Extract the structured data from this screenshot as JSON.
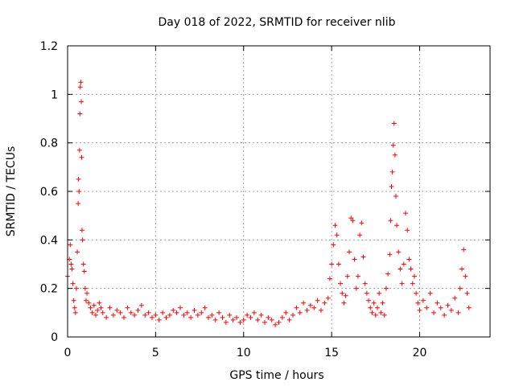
{
  "chart_data": {
    "type": "scatter",
    "title": "Day 018 of 2022, SRMTID for receiver nlib",
    "xlabel": "GPS time / hours",
    "ylabel": "SRMTID / TECUs",
    "xlim": [
      0,
      24
    ],
    "ylim": [
      0,
      1.2
    ],
    "xticks": [
      0,
      5,
      10,
      15,
      20
    ],
    "xtick_labels": [
      "0",
      "5",
      "10",
      "15",
      "20"
    ],
    "yticks": [
      0,
      0.2,
      0.4,
      0.6,
      0.8,
      1.0,
      1.2
    ],
    "ytick_labels": [
      "0",
      "0.2",
      "0.4",
      "0.6",
      "0.8",
      "1",
      "1.2"
    ],
    "grid": true,
    "marker": "plus",
    "color": "#ff0000",
    "series": [
      {
        "name": "SRMTID",
        "x": [
          0.0,
          0.1,
          0.15,
          0.2,
          0.25,
          0.3,
          0.35,
          0.4,
          0.45,
          0.5,
          0.55,
          0.6,
          0.62,
          0.65,
          0.68,
          0.7,
          0.72,
          0.75,
          0.78,
          0.8,
          0.82,
          0.85,
          0.9,
          0.95,
          1.0,
          1.05,
          1.1,
          1.2,
          1.3,
          1.4,
          1.5,
          1.6,
          1.7,
          1.8,
          1.9,
          2.0,
          2.2,
          2.4,
          2.6,
          2.8,
          3.0,
          3.2,
          3.4,
          3.6,
          3.8,
          4.0,
          4.2,
          4.4,
          4.6,
          4.8,
          5.0,
          5.2,
          5.4,
          5.6,
          5.8,
          6.0,
          6.2,
          6.4,
          6.6,
          6.8,
          7.0,
          7.2,
          7.4,
          7.6,
          7.8,
          8.0,
          8.2,
          8.4,
          8.6,
          8.8,
          9.0,
          9.2,
          9.4,
          9.6,
          9.8,
          10.0,
          10.2,
          10.4,
          10.6,
          10.8,
          11.0,
          11.2,
          11.4,
          11.6,
          11.8,
          12.0,
          12.2,
          12.4,
          12.6,
          12.8,
          13.0,
          13.2,
          13.4,
          13.6,
          13.8,
          14.0,
          14.2,
          14.4,
          14.6,
          14.8,
          14.9,
          15.0,
          15.1,
          15.2,
          15.3,
          15.4,
          15.5,
          15.6,
          15.7,
          15.8,
          15.9,
          16.0,
          16.1,
          16.2,
          16.3,
          16.4,
          16.5,
          16.6,
          16.7,
          16.8,
          16.9,
          17.0,
          17.1,
          17.2,
          17.3,
          17.4,
          17.5,
          17.6,
          17.7,
          17.8,
          17.9,
          18.0,
          18.1,
          18.2,
          18.3,
          18.35,
          18.4,
          18.45,
          18.5,
          18.55,
          18.6,
          18.65,
          18.7,
          18.8,
          18.9,
          19.0,
          19.1,
          19.2,
          19.3,
          19.4,
          19.5,
          19.6,
          19.7,
          19.8,
          19.9,
          20.0,
          20.2,
          20.4,
          20.6,
          20.8,
          21.0,
          21.2,
          21.4,
          21.6,
          21.8,
          22.0,
          22.2,
          22.3,
          22.4,
          22.5,
          22.6,
          22.7,
          22.8
        ],
        "y": [
          0.25,
          0.32,
          0.38,
          0.3,
          0.28,
          0.22,
          0.15,
          0.12,
          0.1,
          0.2,
          0.35,
          0.55,
          0.65,
          0.6,
          0.77,
          0.92,
          1.03,
          1.05,
          0.97,
          0.74,
          0.44,
          0.4,
          0.3,
          0.27,
          0.2,
          0.15,
          0.18,
          0.14,
          0.12,
          0.1,
          0.13,
          0.09,
          0.11,
          0.14,
          0.12,
          0.1,
          0.08,
          0.12,
          0.09,
          0.11,
          0.1,
          0.08,
          0.12,
          0.1,
          0.09,
          0.11,
          0.13,
          0.09,
          0.1,
          0.08,
          0.09,
          0.07,
          0.1,
          0.08,
          0.09,
          0.11,
          0.1,
          0.12,
          0.09,
          0.1,
          0.08,
          0.11,
          0.09,
          0.1,
          0.12,
          0.08,
          0.09,
          0.07,
          0.1,
          0.08,
          0.06,
          0.09,
          0.07,
          0.08,
          0.06,
          0.07,
          0.09,
          0.08,
          0.1,
          0.07,
          0.09,
          0.06,
          0.08,
          0.07,
          0.05,
          0.06,
          0.08,
          0.1,
          0.07,
          0.09,
          0.12,
          0.1,
          0.14,
          0.11,
          0.13,
          0.12,
          0.15,
          0.11,
          0.14,
          0.16,
          0.24,
          0.3,
          0.38,
          0.46,
          0.42,
          0.3,
          0.22,
          0.18,
          0.14,
          0.17,
          0.25,
          0.35,
          0.49,
          0.48,
          0.32,
          0.2,
          0.25,
          0.42,
          0.47,
          0.33,
          0.22,
          0.18,
          0.15,
          0.12,
          0.1,
          0.14,
          0.09,
          0.12,
          0.18,
          0.1,
          0.14,
          0.09,
          0.2,
          0.26,
          0.34,
          0.48,
          0.62,
          0.68,
          0.79,
          0.88,
          0.75,
          0.58,
          0.46,
          0.35,
          0.28,
          0.22,
          0.3,
          0.51,
          0.44,
          0.32,
          0.28,
          0.22,
          0.25,
          0.18,
          0.14,
          0.11,
          0.15,
          0.12,
          0.18,
          0.1,
          0.14,
          0.12,
          0.09,
          0.13,
          0.11,
          0.16,
          0.1,
          0.2,
          0.28,
          0.36,
          0.25,
          0.18,
          0.12
        ]
      }
    ]
  }
}
